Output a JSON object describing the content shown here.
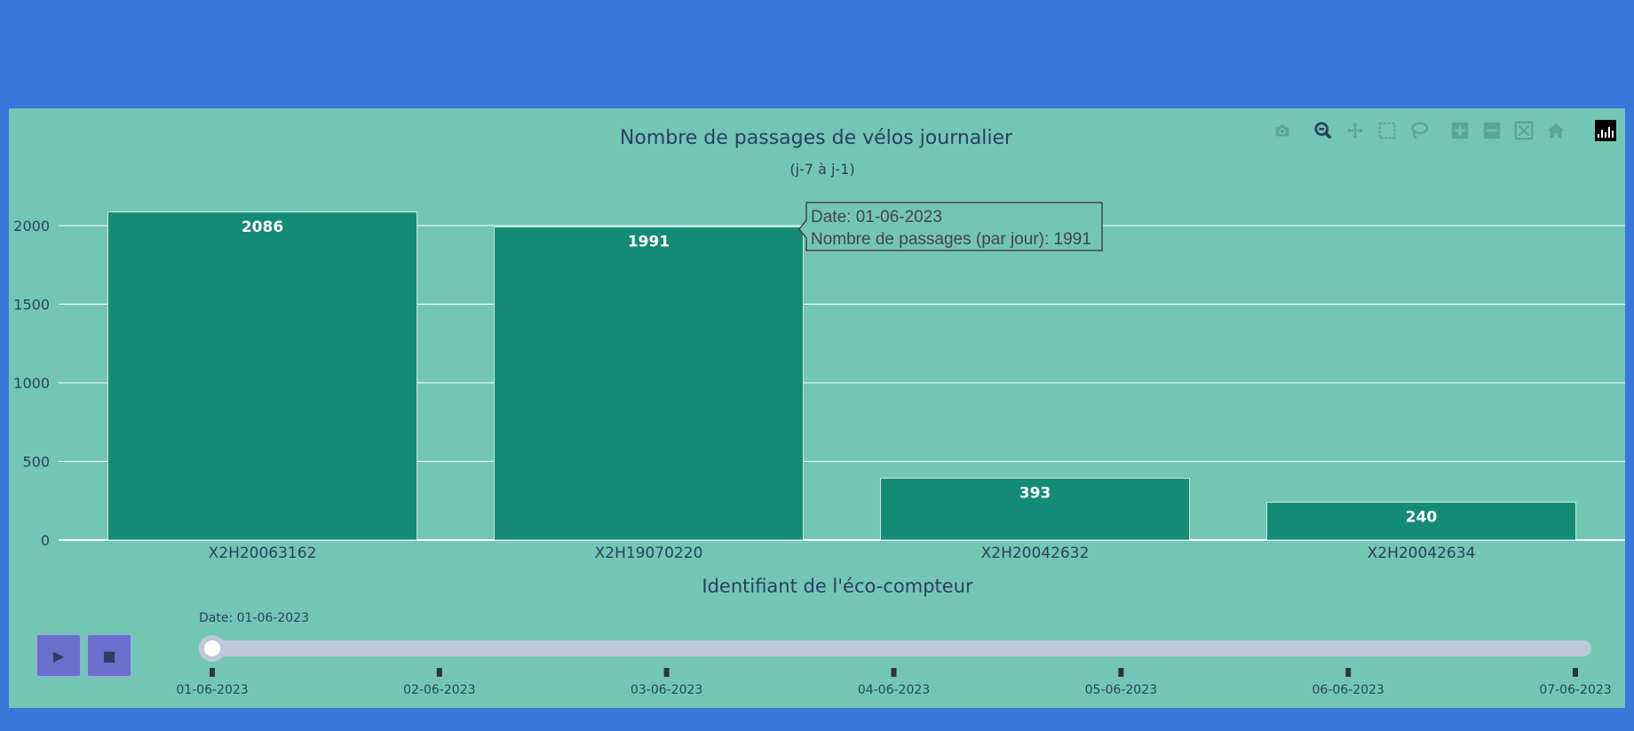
{
  "colors": {
    "page_background": "#3878d9",
    "panel_background": "#73c6b6",
    "bar_fill": "#138b76",
    "text": "#2a3f5f",
    "slider_track": "#bec8d9",
    "button_fill": "#6a6fce"
  },
  "chart_data": {
    "type": "bar",
    "title": "Nombre de passages de vélos journalier",
    "subtitle": "(j-7 à j-1)",
    "xlabel": "Identifiant de l'éco-compteur",
    "ylabel": "",
    "categories": [
      "X2H20063162",
      "X2H19070220",
      "X2H20042632",
      "X2H20042634"
    ],
    "values": [
      2086,
      1991,
      393,
      240
    ],
    "ylim": [
      0,
      2250
    ],
    "yticks": [
      0,
      500,
      1000,
      1500,
      2000
    ],
    "grid": true,
    "legend": "none"
  },
  "tooltip": {
    "line1": "Date: 01-06-2023",
    "line2": "Nombre de passages (par jour): 1991"
  },
  "slider": {
    "current_label": "Date: 01-06-2023",
    "steps": [
      "01-06-2023",
      "02-06-2023",
      "03-06-2023",
      "04-06-2023",
      "05-06-2023",
      "06-06-2023",
      "07-06-2023"
    ],
    "active_index": 0
  },
  "animation_buttons": {
    "play_icon": "play-icon",
    "stop_icon": "stop-icon"
  },
  "modebar": {
    "icons": [
      "camera-icon",
      "zoom-icon",
      "pan-icon",
      "box-select-icon",
      "lasso-icon",
      "zoom-in-icon",
      "zoom-out-icon",
      "autoscale-icon",
      "reset-axes-icon",
      "plotly-logo-icon"
    ]
  }
}
